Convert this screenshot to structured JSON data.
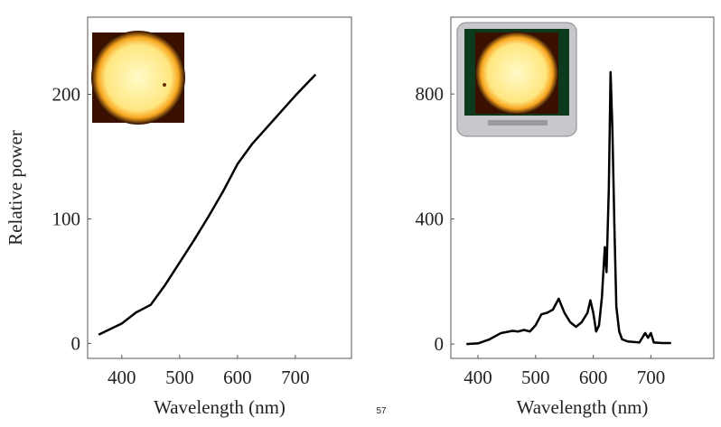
{
  "chart_data": [
    {
      "type": "line",
      "y_label": "Relative power",
      "x_label": "Wavelength (nm)",
      "x": [
        360,
        400,
        425,
        450,
        475,
        500,
        525,
        550,
        575,
        600,
        625,
        650,
        675,
        700,
        735
      ],
      "series": [
        {
          "color": "#000000",
          "values": [
            7,
            16,
            25,
            31,
            47,
            65,
            83,
            102,
            122,
            144,
            160,
            173,
            186,
            199,
            216
          ]
        }
      ],
      "xlim": [
        341,
        797
      ],
      "ylim": [
        -12,
        262
      ],
      "xticks": [
        400,
        500,
        600,
        700
      ],
      "yticks": [
        0,
        100,
        200
      ],
      "grid": false
    },
    {
      "type": "line",
      "x_label": "Wavelength (nm)",
      "x": [
        380,
        400,
        420,
        440,
        460,
        470,
        480,
        490,
        500,
        510,
        520,
        530,
        540,
        550,
        560,
        570,
        580,
        590,
        595,
        600,
        605,
        610,
        615,
        620,
        623,
        627,
        630,
        633,
        637,
        640,
        645,
        650,
        660,
        680,
        690,
        695,
        700,
        705,
        720,
        735
      ],
      "series": [
        {
          "color": "#000000",
          "values": [
            0,
            2,
            15,
            35,
            42,
            40,
            45,
            40,
            60,
            95,
            100,
            110,
            145,
            100,
            70,
            55,
            70,
            100,
            140,
            100,
            40,
            60,
            150,
            310,
            230,
            500,
            870,
            700,
            350,
            120,
            40,
            15,
            8,
            5,
            35,
            20,
            35,
            5,
            3,
            3
          ]
        }
      ],
      "xlim": [
        353,
        809
      ],
      "ylim": [
        -46,
        1046
      ],
      "xticks": [
        400,
        500,
        600,
        700
      ],
      "yticks": [
        0,
        400,
        800
      ],
      "grid": false
    }
  ],
  "footer": {
    "page_number": "57"
  }
}
